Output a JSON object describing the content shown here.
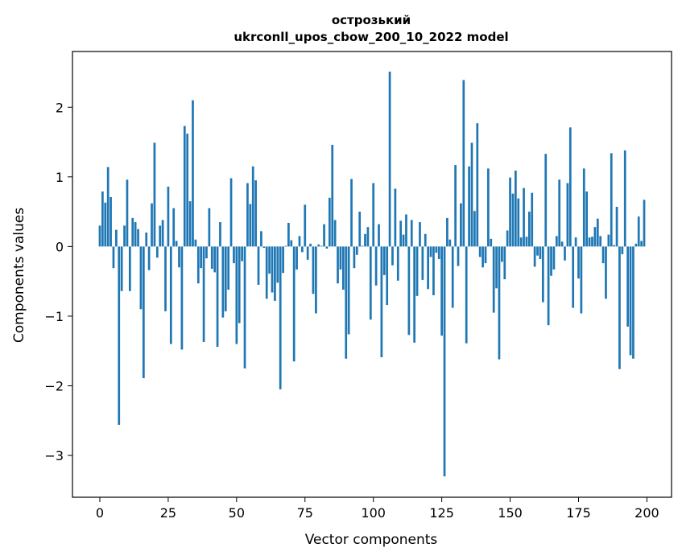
{
  "chart_data": {
    "type": "bar",
    "title_line1": "острозький",
    "title_line2": "ukrconll_upos_cbow_200_10_2022 model",
    "xlabel": "Vector components",
    "ylabel": "Components values",
    "xlim": [
      -10,
      209
    ],
    "ylim": [
      -3.6,
      2.8
    ],
    "xticks": [
      0,
      25,
      50,
      75,
      100,
      125,
      150,
      175,
      200
    ],
    "yticks": [
      -3,
      -2,
      -1,
      0,
      1,
      2
    ],
    "ytick_labels": [
      "−3",
      "−2",
      "−1",
      "0",
      "1",
      "2"
    ],
    "bar_color": "#1f77b4",
    "values": [
      0.3,
      0.79,
      0.63,
      1.14,
      0.71,
      -0.31,
      0.24,
      -2.56,
      -0.64,
      0.3,
      0.96,
      -0.64,
      0.41,
      0.35,
      0.25,
      -0.9,
      -1.89,
      0.2,
      -0.34,
      0.62,
      1.49,
      -0.16,
      0.3,
      0.38,
      -0.93,
      0.86,
      -1.4,
      0.55,
      0.08,
      -0.3,
      -1.48,
      1.73,
      1.62,
      0.65,
      2.1,
      0.1,
      -0.53,
      -0.31,
      -1.37,
      -0.17,
      0.55,
      -0.32,
      -0.37,
      -1.44,
      0.35,
      -1.02,
      -0.93,
      -0.62,
      0.98,
      -0.24,
      -1.4,
      -1.1,
      -0.21,
      -1.75,
      0.91,
      0.61,
      1.15,
      0.95,
      -0.55,
      0.22,
      -0.02,
      -0.75,
      -0.39,
      -0.66,
      -0.78,
      -0.52,
      -2.05,
      -0.38,
      0.01,
      0.34,
      0.09,
      -1.65,
      -0.33,
      0.15,
      -0.08,
      0.6,
      -0.19,
      0.04,
      -0.68,
      -0.96,
      0.03,
      0.01,
      0.32,
      -0.03,
      0.7,
      1.46,
      0.38,
      -0.53,
      -0.33,
      -0.62,
      -1.61,
      -1.26,
      0.97,
      -0.31,
      -0.12,
      0.5,
      0.01,
      0.18,
      0.28,
      -1.05,
      0.91,
      -0.56,
      0.32,
      -1.59,
      -0.41,
      -0.84,
      2.51,
      -0.27,
      0.83,
      -0.49,
      0.37,
      0.17,
      0.46,
      -1.27,
      0.38,
      -1.38,
      -0.71,
      0.35,
      -0.48,
      0.18,
      -0.61,
      -0.15,
      -0.7,
      -0.09,
      -0.18,
      -1.28,
      -3.3,
      0.41,
      0.1,
      -0.88,
      1.17,
      -0.28,
      0.62,
      2.39,
      -1.39,
      1.15,
      1.49,
      0.51,
      1.77,
      -0.15,
      -0.3,
      -0.24,
      1.12,
      0.11,
      -0.95,
      -0.6,
      -1.62,
      -0.22,
      -0.47,
      0.23,
      0.99,
      0.76,
      1.09,
      0.69,
      0.13,
      0.84,
      0.14,
      0.5,
      0.77,
      -0.29,
      -0.13,
      -0.18,
      -0.8,
      1.33,
      -1.13,
      -0.42,
      -0.33,
      0.15,
      0.96,
      0.07,
      -0.2,
      0.91,
      1.71,
      -0.88,
      0.13,
      -0.46,
      -0.96,
      1.12,
      0.79,
      0.13,
      0.14,
      0.28,
      0.4,
      0.15,
      -0.24,
      -0.75,
      0.17,
      1.34,
      0.02,
      0.57,
      -1.76,
      -0.11,
      1.38,
      -1.15,
      -1.56,
      -1.61,
      0.04,
      0.43,
      0.08,
      0.67
    ]
  }
}
